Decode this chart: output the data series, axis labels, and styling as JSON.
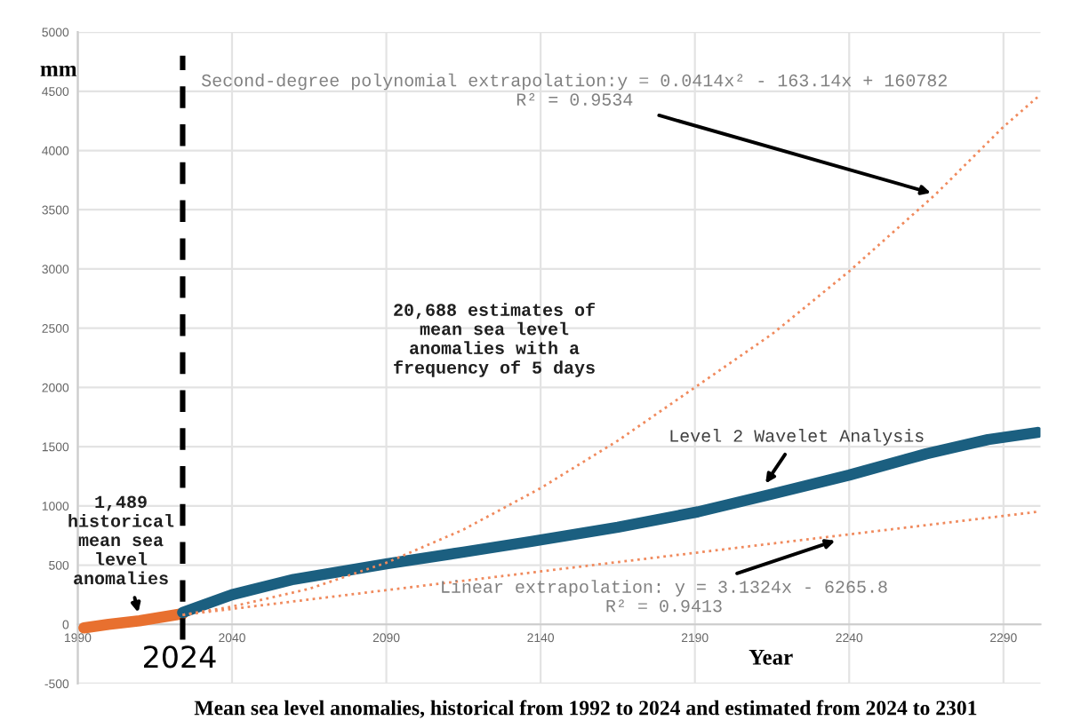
{
  "chart_data": {
    "type": "line",
    "title": "Mean sea level anomalies, historical from 1992 to 2024 and estimated from 2024 to 2301",
    "xlabel": "Year",
    "ylabel": "mm",
    "series": [
      {
        "color": "#e8702f",
        "line_style": "solid",
        "x": [
          1992,
          2000,
          2010,
          2024
        ],
        "values": [
          -30,
          0,
          30,
          90
        ]
      },
      {
        "color": "#1b5f80",
        "line_style": "solid",
        "x": [
          2024,
          2040,
          2060,
          2090,
          2115,
          2137,
          2165,
          2191,
          2215,
          2240,
          2265,
          2285,
          2301
        ],
        "values": [
          100,
          250,
          380,
          510,
          610,
          700,
          820,
          950,
          1100,
          1260,
          1440,
          1560,
          1620
        ]
      },
      {
        "color": "#f08a5d",
        "line_style": "dotted",
        "x": [
          2024,
          2040,
          2065,
          2090,
          2115,
          2140,
          2165,
          2190,
          2215,
          2240,
          2268,
          2290,
          2301
        ],
        "values": [
          80,
          150,
          300,
          520,
          800,
          1150,
          1550,
          2000,
          2450,
          2980,
          3630,
          4200,
          4450
        ]
      },
      {
        "color": "#f08a5d",
        "line_style": "dotted",
        "x": [
          2024,
          2160,
          2301
        ],
        "values": [
          80,
          510,
          950
        ]
      }
    ],
    "xlim": [
      1990,
      2302
    ],
    "ylim": [
      -500,
      5000
    ],
    "xticks": [
      1990,
      2040,
      2090,
      2140,
      2190,
      2240,
      2290
    ],
    "yticks": [
      -500,
      0,
      500,
      1000,
      1500,
      2000,
      2500,
      3000,
      3500,
      4000,
      4500,
      5000
    ],
    "grid": true,
    "ref_lines": [
      {
        "axis": "x",
        "value": 2024,
        "label": "2024",
        "color": "#000000",
        "line_style": "dashed"
      }
    ],
    "annotations": [
      {
        "text": "Second-degree polynomial extrapolation:y = 0.0414x² - 163.14x + 160782\nR² = 0.9534",
        "x": 2268,
        "y": 3630
      },
      {
        "text": "Level 2 Wavelet Analysis",
        "x": 2212,
        "y": 1155
      },
      {
        "text": "Linear extrapolation: y = 3.1324x - 6265.8\nR² = 0.9413",
        "x": 2237,
        "y": 720
      },
      {
        "text": "1,489\nhistorical\nmean sea\nlevel\nanomalies",
        "x": 2010,
        "y": 60
      },
      "20,688 estimates of\nmean sea level\nanomalies with a\nfrequency of 5 days"
    ]
  }
}
